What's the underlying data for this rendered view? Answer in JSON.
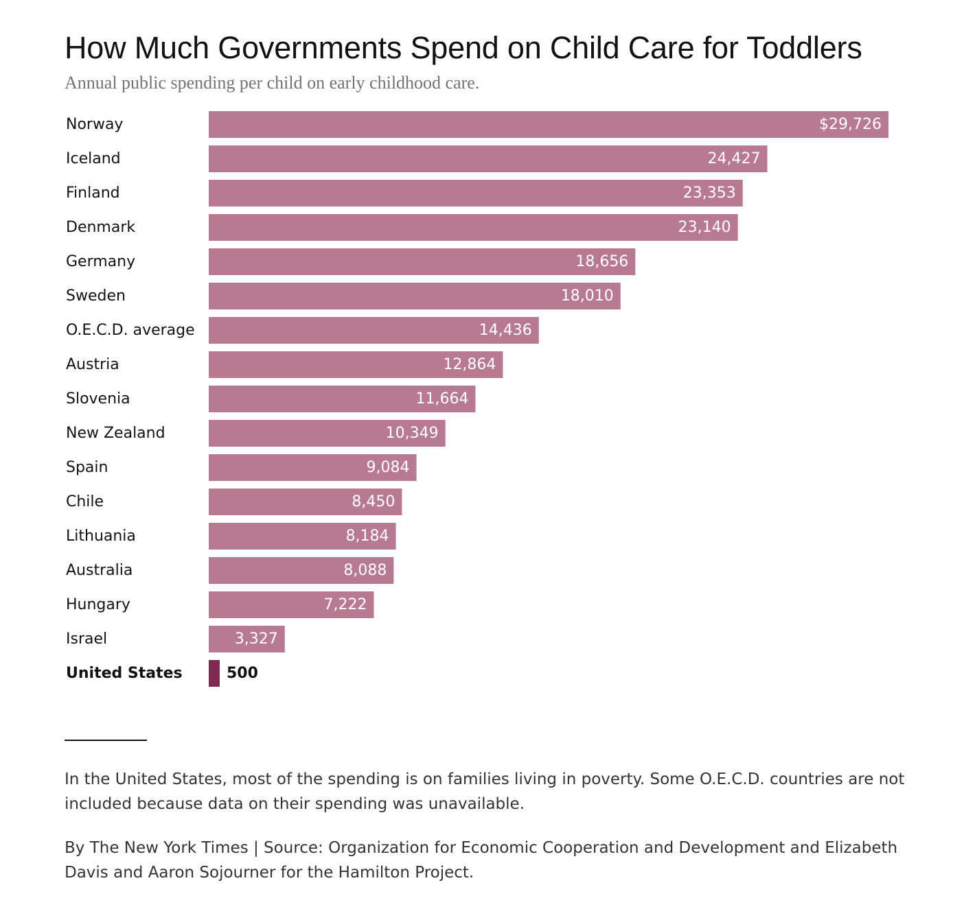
{
  "title": "How Much Governments Spend on Child Care for Toddlers",
  "subtitle": "Annual public spending per child on early childhood care.",
  "note": "In the United States, most of the spending is on families living in poverty. Some O.E.C.D. countries are not included because data on their spending was unavailable.",
  "source": "By The New York Times | Source: Organization for Economic Cooperation and Development and Elizabeth Davis and Aaron Sojourner for the Hamilton Project.",
  "colors": {
    "bar": "#b77a92",
    "highlight_bar": "#7e2a52",
    "bar_label": "#ffffff",
    "category_label": "#121212"
  },
  "chart_data": {
    "type": "bar",
    "orientation": "horizontal",
    "title": "How Much Governments Spend on Child Care for Toddlers",
    "subtitle": "Annual public spending per child on early childhood care.",
    "xlabel": "",
    "ylabel": "",
    "xlim": [
      0,
      29726
    ],
    "grid": false,
    "highlight": "United States",
    "categories": [
      "Norway",
      "Iceland",
      "Finland",
      "Denmark",
      "Germany",
      "Sweden",
      "O.E.C.D. average",
      "Austria",
      "Slovenia",
      "New Zealand",
      "Spain",
      "Chile",
      "Lithuania",
      "Australia",
      "Hungary",
      "Israel",
      "United States"
    ],
    "values": [
      29726,
      24427,
      23353,
      23140,
      18656,
      18010,
      14436,
      12864,
      11664,
      10349,
      9084,
      8450,
      8184,
      8088,
      7222,
      3327,
      500
    ],
    "value_labels": [
      "$29,726",
      "24,427",
      "23,353",
      "23,140",
      "18,656",
      "18,010",
      "14,436",
      "12,864",
      "11,664",
      "10,349",
      "9,084",
      "8,450",
      "8,184",
      "8,088",
      "7,222",
      "3,327",
      "500"
    ]
  }
}
